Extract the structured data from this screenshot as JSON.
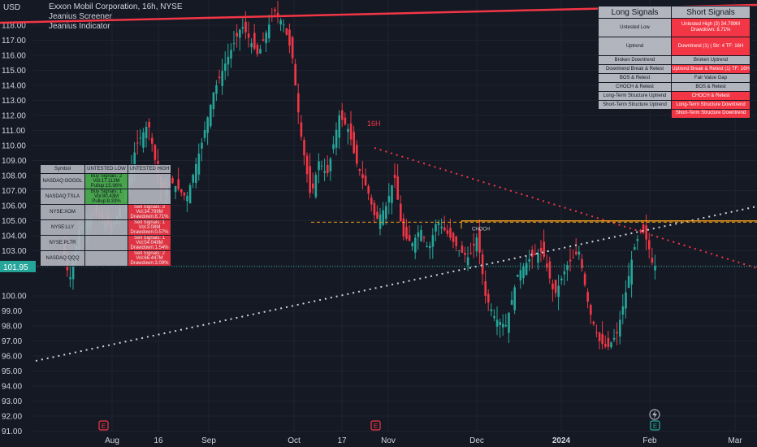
{
  "header": {
    "currency": "USD",
    "symbol_line": "Exxon Mobil Corporation, 16h, NYSE",
    "indicator_1": "Jeanius Screener",
    "indicator_2": "Jeanius Indicator"
  },
  "chart_data": {
    "type": "candlestick",
    "title": "Exxon Mobil Corporation, 16h, NYSE",
    "ylim": [
      91.0,
      119.0
    ],
    "yticks": [
      "118.00",
      "117.00",
      "116.00",
      "115.00",
      "114.00",
      "113.00",
      "112.00",
      "111.00",
      "110.00",
      "109.00",
      "108.00",
      "107.00",
      "106.00",
      "105.00",
      "104.00",
      "103.00",
      "102.00",
      "100.00",
      "99.00",
      "98.00",
      "97.00",
      "96.00",
      "95.00",
      "94.00",
      "93.00",
      "92.00",
      "91.00"
    ],
    "xticks": [
      "Aug",
      "16",
      "Sep",
      "Oct",
      "17",
      "Nov",
      "Dec",
      "2024",
      "Feb",
      "Mar"
    ],
    "last_price": "101.95",
    "chart_label": "16H",
    "choch_label": "CHOCH",
    "colors": {
      "up": "#26a69a",
      "down": "#f23645",
      "last_price": "#26a69a",
      "level": "#f7a21b",
      "trend": "#f23645",
      "dotted": "#d1d4dc"
    },
    "levels": [
      104.9
    ],
    "earnings_markers": [
      "E",
      "E",
      "E"
    ]
  },
  "signals_table": {
    "long_header": "Long Signals",
    "short_header": "Short Signals",
    "rows": [
      {
        "long": "Untested Low",
        "short": "Untested High (3) 34.799M Drawdown: 8.71%"
      },
      {
        "long": "Uptrend",
        "short": "Downtrend (1) | Str: 4 TF: 16H"
      },
      {
        "long": "Broken Downtrend",
        "short": "Broken Uptrend"
      },
      {
        "long": "Downtrend Break & Retest",
        "short": "Uptrend Break & Retest (1) TF: 16H"
      },
      {
        "long": "BOS & Retest",
        "short": "Fair Value Gap"
      },
      {
        "long": "CHOCH & Retest",
        "short": "BOS & Retest"
      },
      {
        "long": "Long-Term Structure Uptrend",
        "short": "CHOCH & Retest"
      },
      {
        "long": "Short-Term Structure Uptrend",
        "short": "Long-Term Structure Downtrend"
      },
      {
        "long": "",
        "short": "Short-Term Structure Downtrend"
      }
    ]
  },
  "screener_table": {
    "headers": [
      "Symbol",
      "UNTESTED LOW",
      "UNTESTED HIGH"
    ],
    "rows": [
      {
        "symbol": "NASDAQ:GOOGL",
        "low": "Buy Signals: 2 Vol:17.113M Pullup:15.96%",
        "high": ""
      },
      {
        "symbol": "NASDAQ:TSLA",
        "low": "Buy Signals: 1 Vol:80.43M Pullup:8.33%",
        "high": ""
      },
      {
        "symbol": "NYSE:XOM",
        "low": "",
        "high": "Sell Signals: 3 Vol:34.799M Drawdown:8.71%"
      },
      {
        "symbol": "NYSE:LLY",
        "low": "",
        "high": "Sell Signals: 1 Vol:3.08M Drawdown:0.57%"
      },
      {
        "symbol": "NYSE:PLTR",
        "low": "",
        "high": "Sell Signals: 1 Vol:54.049M Drawdown:1.54%"
      },
      {
        "symbol": "NASDAQ:QQQ",
        "low": "",
        "high": "Sell Signals: 2 Vol:66.447M Drawdown:3.09%"
      }
    ]
  }
}
